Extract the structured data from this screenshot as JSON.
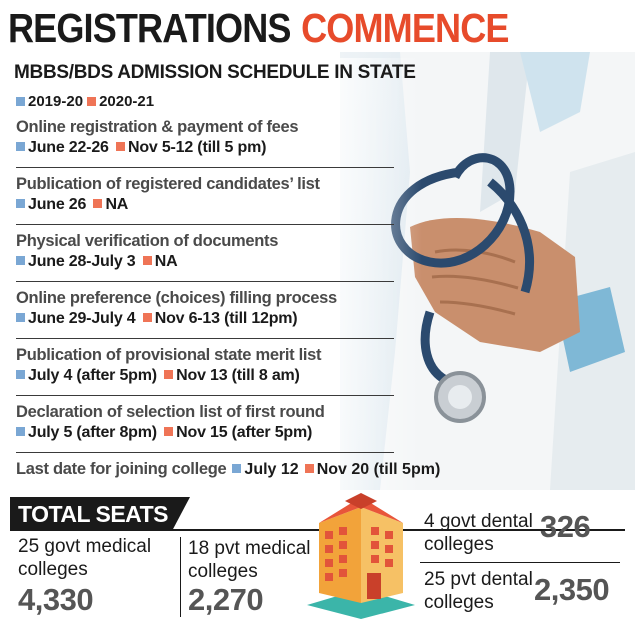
{
  "headline": {
    "word1": "REGISTRATIONS",
    "word2": "COMMENCE"
  },
  "schedule": {
    "title": "MBBS/BDS ADMISSION SCHEDULE IN STATE",
    "legend": [
      {
        "label": "2019-20",
        "color": "#7aa7d4"
      },
      {
        "label": "2020-21",
        "color": "#ef7456"
      }
    ],
    "rows": [
      {
        "label": "Online registration & payment of fees",
        "y2019": "June 22-26",
        "y2020": "Nov 5-12 (till 5 pm)"
      },
      {
        "label": "Publication of registered candidates’ list",
        "y2019": "June 26",
        "y2020": "NA"
      },
      {
        "label": "Physical verification of documents",
        "y2019": "June 28-July 3",
        "y2020": "NA"
      },
      {
        "label": "Online preference (choices) filling process",
        "y2019": "June 29-July 4",
        "y2020": "Nov 6-13 (till 12pm)"
      },
      {
        "label": "Publication of provisional state merit list",
        "y2019": "July 4 (after 5pm)",
        "y2020": "Nov 13 (till 8 am)"
      },
      {
        "label": "Declaration of selection list of first round",
        "y2019": "July 5 (after 8pm)",
        "y2020": "Nov 15 (after 5pm)"
      },
      {
        "label": "Last date for joining college",
        "y2019": "July 12",
        "y2020": "Nov 20 (till 5pm)"
      }
    ]
  },
  "seats": {
    "title": "TOTAL SEATS",
    "items": [
      {
        "label_line1": "25 govt medical",
        "label_line2": "colleges",
        "value": "4,330"
      },
      {
        "label_line1": "18 pvt medical",
        "label_line2": "colleges",
        "value": "2,270"
      },
      {
        "label_line1": "4 govt dental",
        "label_line2": "colleges",
        "value": "326"
      },
      {
        "label_line1": "25 pvt dental",
        "label_line2": "colleges",
        "value": "2,350"
      }
    ]
  },
  "icons": {
    "photo": "doctor-stethoscope-photo",
    "building": "college-building-icon",
    "legend_marker": "color-square-icon"
  }
}
